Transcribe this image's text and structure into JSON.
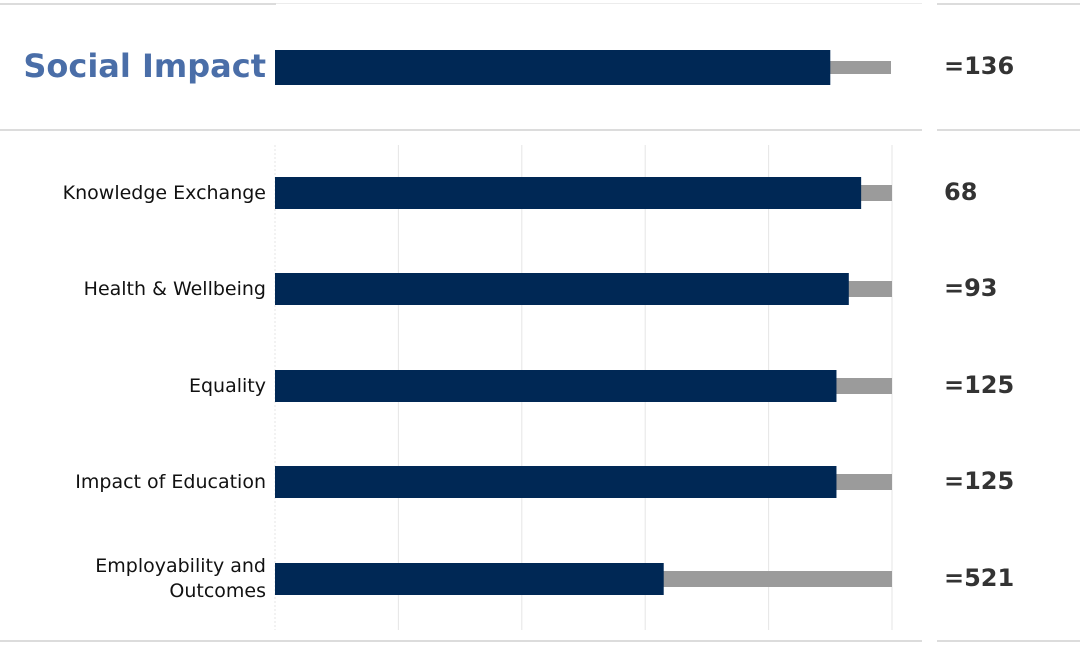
{
  "colors": {
    "primary": "#002855",
    "track": "#9b9b9b",
    "title": "#4a6ea8",
    "grid": "#e5e5e5"
  },
  "header": {
    "title": "Social Impact",
    "rank": "=136",
    "score": 0.9
  },
  "chart_data": {
    "type": "bar",
    "orientation": "horizontal",
    "categories": [
      "Knowledge Exchange",
      "Health & Wellbeing",
      "Equality",
      "Impact of Education",
      "Employability and Outcomes"
    ],
    "values": [
      0.95,
      0.93,
      0.91,
      0.91,
      0.63
    ],
    "ranks": [
      "68",
      "=93",
      "=125",
      "=125",
      "=521"
    ],
    "xlim": [
      0,
      1
    ],
    "grid": true,
    "background_track": true
  }
}
